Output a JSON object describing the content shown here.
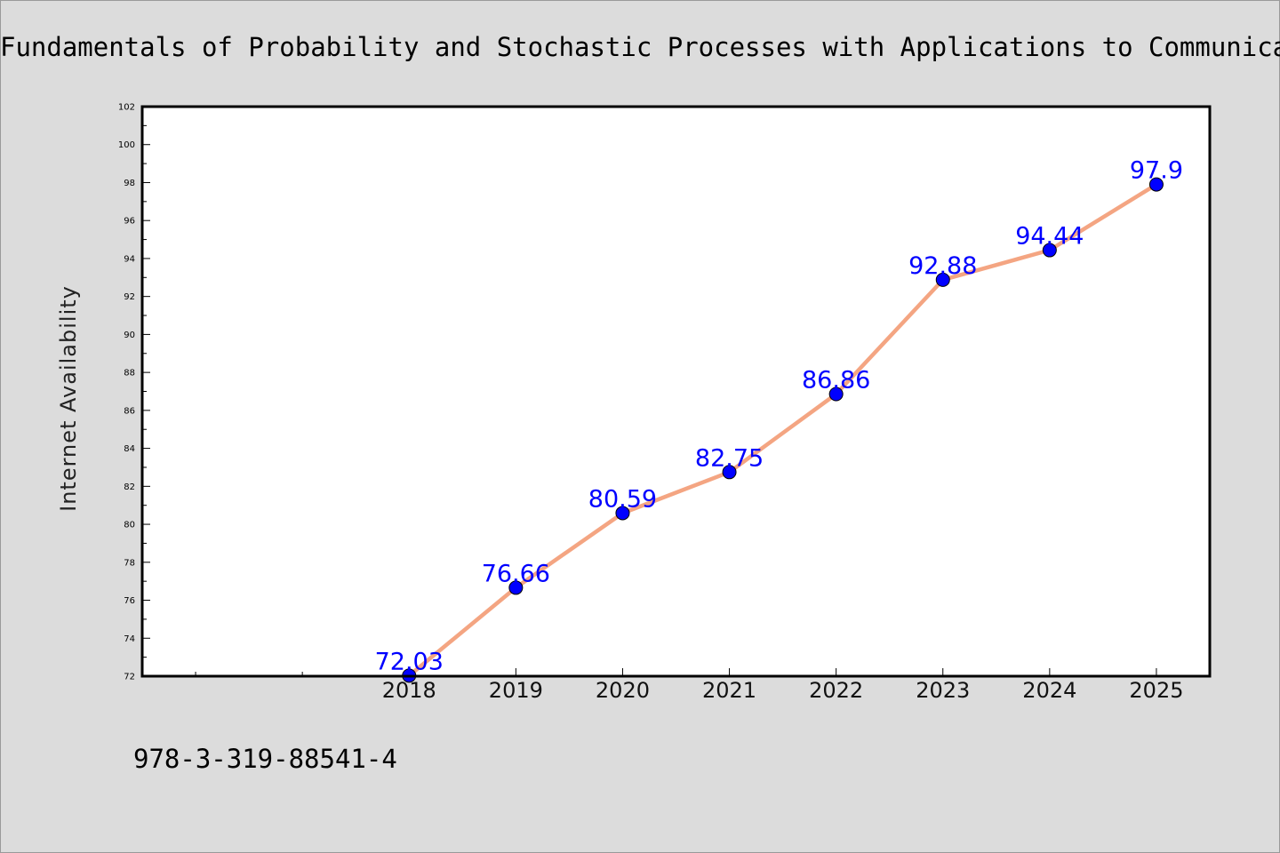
{
  "title": "Fundamentals of Probability and Stochastic Processes with Applications to Communications",
  "footer_text": "978-3-319-88541-4",
  "colors": {
    "background": "#dcdcdc",
    "plot_area": "#ffffff",
    "line": "#f4a582",
    "marker": "#0000ff",
    "data_label": "#0000ff"
  },
  "chart_data": {
    "type": "line",
    "title": "Fundamentals of Probability and Stochastic Processes with Applications to Communications",
    "xlabel": "",
    "ylabel": "Internet Availability",
    "categories": [
      "2018",
      "2019",
      "2020",
      "2021",
      "2022",
      "2023",
      "2024",
      "2025"
    ],
    "x_range": [
      2015.5,
      2025.5
    ],
    "x_minor_ticks": [
      2016,
      2017
    ],
    "values": [
      72.03,
      76.66,
      80.59,
      82.75,
      86.86,
      92.88,
      94.44,
      97.9
    ],
    "data_labels": [
      "72.03",
      "76.66",
      "80.59",
      "82.75",
      "86.86",
      "92.88",
      "94.44",
      "97.9"
    ],
    "ylim": [
      72,
      102
    ],
    "y_major_ticks": [
      72,
      74,
      76,
      78,
      80,
      82,
      84,
      86,
      88,
      90,
      92,
      94,
      96,
      98,
      100,
      102
    ],
    "grid": false,
    "legend": "none"
  }
}
